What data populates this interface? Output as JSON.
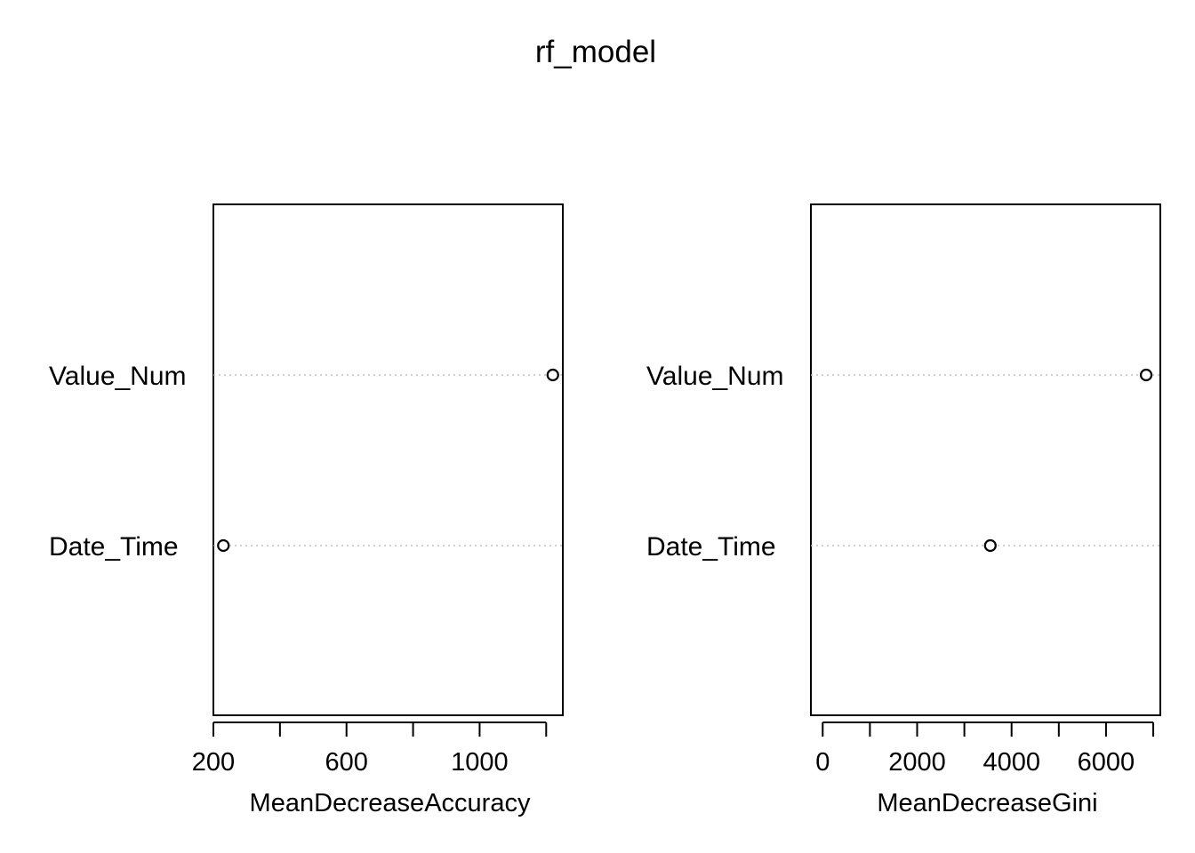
{
  "title": "rf_model",
  "chart_data": [
    {
      "type": "scatter",
      "title": "",
      "xlabel": "MeanDecreaseAccuracy",
      "ylabel": "",
      "categories": [
        "Value_Num",
        "Date_Time"
      ],
      "values": [
        1220,
        230
      ],
      "xlim": [
        200,
        1250
      ],
      "xticks": [
        200,
        400,
        600,
        800,
        1000,
        1200
      ],
      "xtick_labels": [
        "200",
        "",
        "600",
        "",
        "1000",
        ""
      ],
      "grid": false,
      "colors": {
        "point": "#000000",
        "guide": "#bdbdbd"
      }
    },
    {
      "type": "scatter",
      "title": "",
      "xlabel": "MeanDecreaseGini",
      "ylabel": "",
      "categories": [
        "Value_Num",
        "Date_Time"
      ],
      "values": [
        6850,
        3550
      ],
      "xlim": [
        -250,
        7150
      ],
      "xticks": [
        0,
        1000,
        2000,
        3000,
        4000,
        5000,
        6000,
        7000
      ],
      "xtick_labels": [
        "0",
        "",
        "2000",
        "",
        "4000",
        "",
        "6000",
        ""
      ],
      "grid": false,
      "colors": {
        "point": "#000000",
        "guide": "#bdbdbd"
      }
    }
  ]
}
